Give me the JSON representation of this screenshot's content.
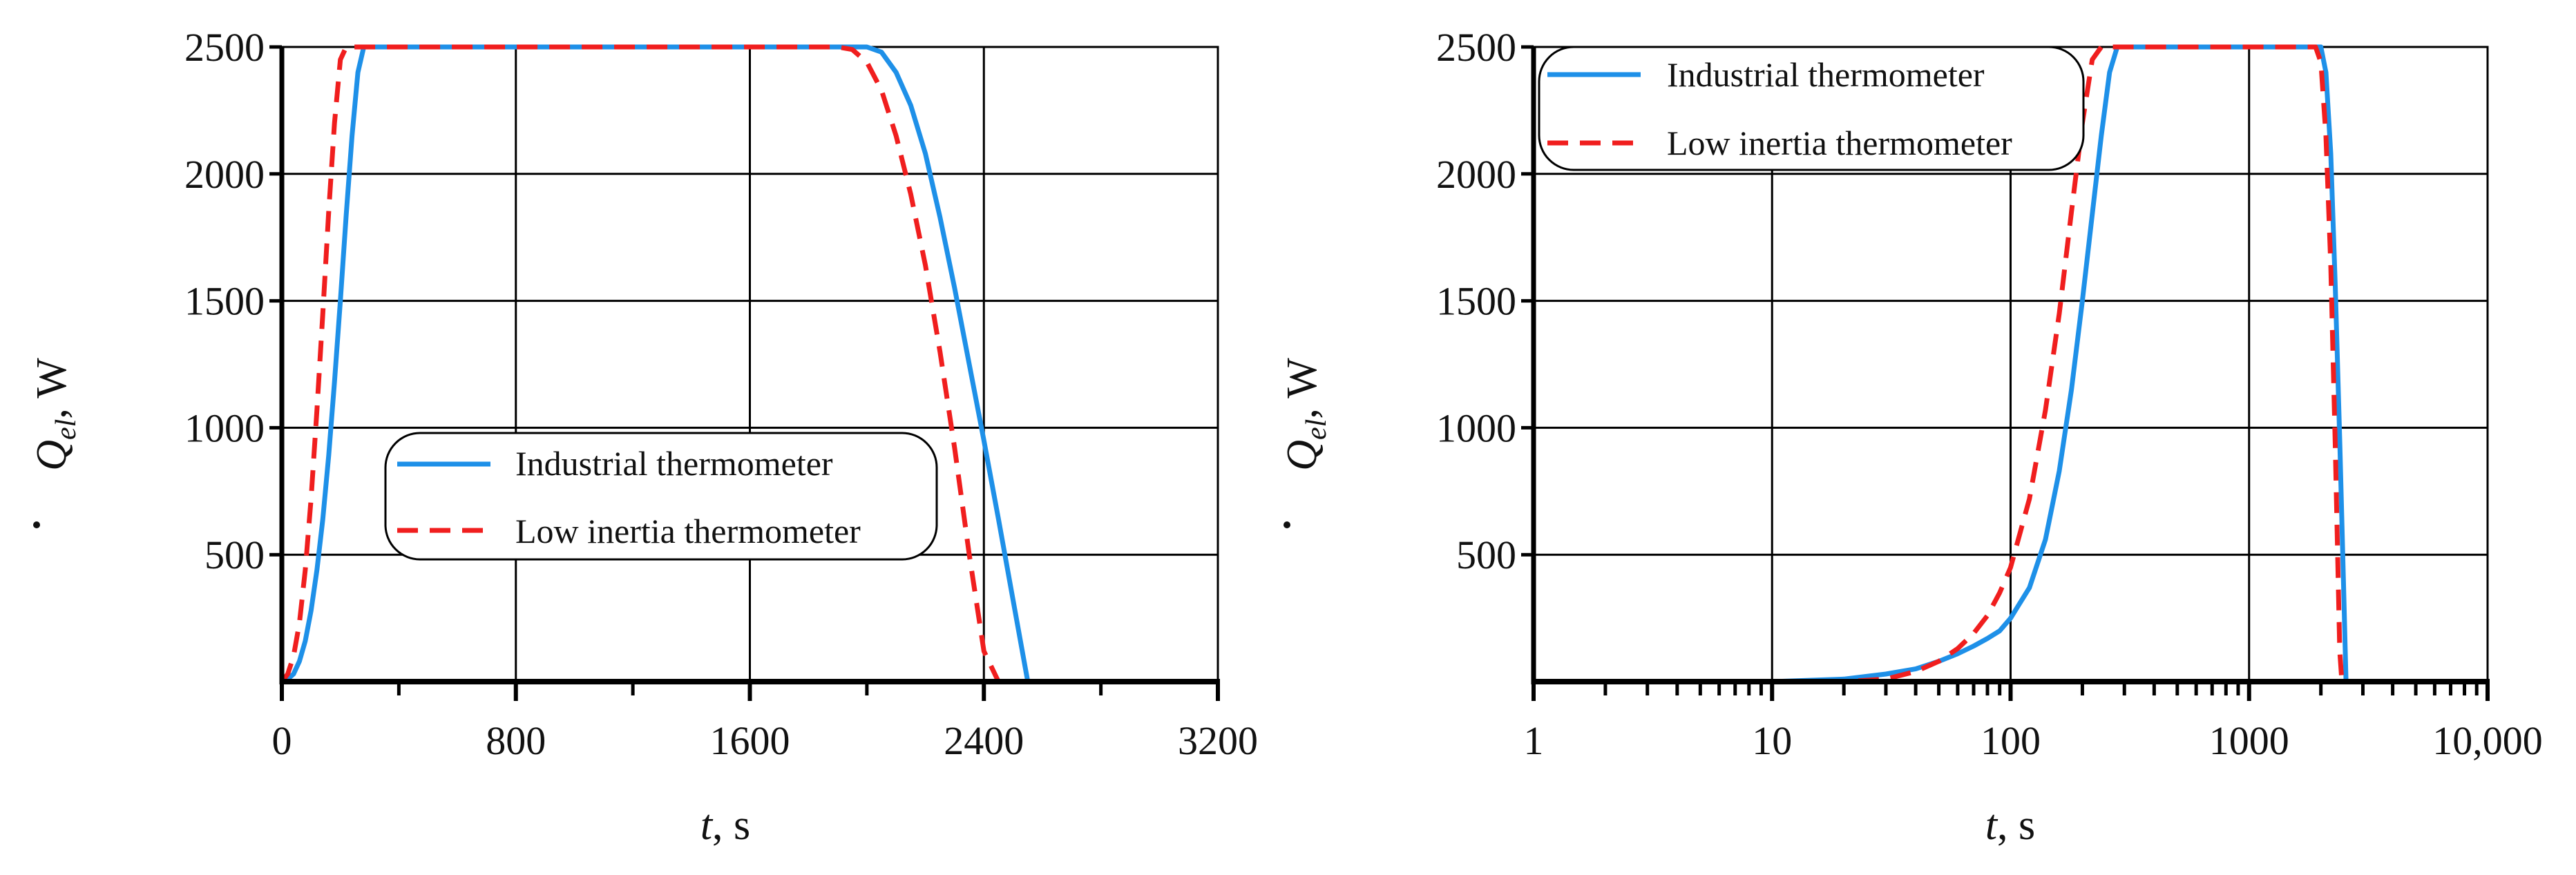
{
  "colors": {
    "industrial": "#1E90E8",
    "low_inertia": "#F01E1E",
    "grid": "#000000",
    "axis": "#000000"
  },
  "chart_data": [
    {
      "type": "line",
      "id": "linear",
      "xscale": "linear",
      "xlim": [
        0,
        3200
      ],
      "ylim": [
        0,
        2500
      ],
      "xticks": [
        0,
        800,
        1600,
        2400,
        3200
      ],
      "xtick_labels": [
        "0",
        "800",
        "1600",
        "2400",
        "3200"
      ],
      "yticks": [
        500,
        1000,
        1500,
        2000,
        2500
      ],
      "ytick_labels": [
        "500",
        "1000",
        "1500",
        "2000",
        "2500"
      ],
      "minor_xticks": [
        400,
        1200,
        2000,
        2800
      ],
      "xlabel": {
        "italic": "t",
        "rest": ", s"
      },
      "ylabel": {
        "symbol": "Q",
        "sub": "el",
        "rest": ", W"
      },
      "grid": true,
      "legend": {
        "position": "center",
        "entries": [
          "Industrial thermometer",
          "Low inertia thermometer"
        ]
      },
      "series": [
        {
          "name": "Industrial thermometer",
          "style": "solid",
          "color_key": "industrial",
          "x": [
            0,
            20,
            40,
            60,
            80,
            100,
            120,
            140,
            160,
            180,
            200,
            220,
            240,
            260,
            280,
            2000,
            2050,
            2100,
            2150,
            2200,
            2250,
            2300,
            2350,
            2400,
            2450,
            2500,
            2550,
            3200
          ],
          "y": [
            0,
            10,
            30,
            80,
            160,
            280,
            440,
            640,
            890,
            1180,
            1500,
            1840,
            2150,
            2400,
            2500,
            2500,
            2480,
            2400,
            2270,
            2080,
            1830,
            1550,
            1250,
            950,
            640,
            320,
            0,
            0
          ]
        },
        {
          "name": "Low inertia thermometer",
          "style": "dashed",
          "color_key": "low_inertia",
          "x": [
            0,
            20,
            40,
            60,
            80,
            100,
            120,
            140,
            160,
            180,
            200,
            220,
            1900,
            1950,
            2000,
            2050,
            2100,
            2150,
            2200,
            2250,
            2300,
            2350,
            2400,
            2450,
            3200
          ],
          "y": [
            0,
            30,
            100,
            230,
            440,
            720,
            1070,
            1450,
            1850,
            2200,
            2450,
            2500,
            2500,
            2490,
            2440,
            2330,
            2150,
            1920,
            1640,
            1300,
            920,
            500,
            120,
            0,
            0
          ]
        }
      ]
    },
    {
      "type": "line",
      "id": "log",
      "xscale": "log",
      "xlim": [
        1,
        10000
      ],
      "ylim": [
        0,
        2500
      ],
      "xticks": [
        1,
        10,
        100,
        1000,
        10000
      ],
      "xtick_labels": [
        "1",
        "10",
        "100",
        "1000",
        "10,000"
      ],
      "yticks": [
        500,
        1000,
        1500,
        2000,
        2500
      ],
      "ytick_labels": [
        "500",
        "1000",
        "1500",
        "2000",
        "2500"
      ],
      "xlabel": {
        "italic": "t",
        "rest": ", s"
      },
      "ylabel": {
        "symbol": "Q",
        "sub": "el",
        "rest": ", W"
      },
      "grid": true,
      "legend": {
        "position": "top-left",
        "entries": [
          "Industrial thermometer",
          "Low inertia thermometer"
        ]
      },
      "series": [
        {
          "name": "Industrial thermometer",
          "style": "solid",
          "color_key": "industrial",
          "x": [
            1,
            10,
            20,
            30,
            40,
            50,
            60,
            70,
            80,
            90,
            100,
            120,
            140,
            160,
            180,
            200,
            220,
            240,
            260,
            280,
            2000,
            2100,
            2200,
            2300,
            2400,
            2500,
            2550,
            3000
          ],
          "y": [
            0,
            0,
            10,
            30,
            50,
            80,
            110,
            140,
            170,
            200,
            250,
            370,
            560,
            830,
            1150,
            1500,
            1840,
            2150,
            2400,
            2500,
            2500,
            2400,
            2080,
            1550,
            950,
            320,
            0,
            0
          ]
        },
        {
          "name": "Low inertia thermometer",
          "style": "dashed",
          "color_key": "low_inertia",
          "x": [
            1,
            20,
            30,
            40,
            50,
            60,
            70,
            80,
            90,
            100,
            120,
            140,
            160,
            180,
            200,
            220,
            240,
            1900,
            2000,
            2100,
            2200,
            2300,
            2400,
            2450,
            3000
          ],
          "y": [
            0,
            0,
            10,
            40,
            80,
            130,
            190,
            260,
            350,
            450,
            720,
            1070,
            1450,
            1850,
            2200,
            2450,
            2500,
            2500,
            2440,
            2150,
            1640,
            920,
            120,
            0,
            0
          ]
        }
      ]
    }
  ]
}
